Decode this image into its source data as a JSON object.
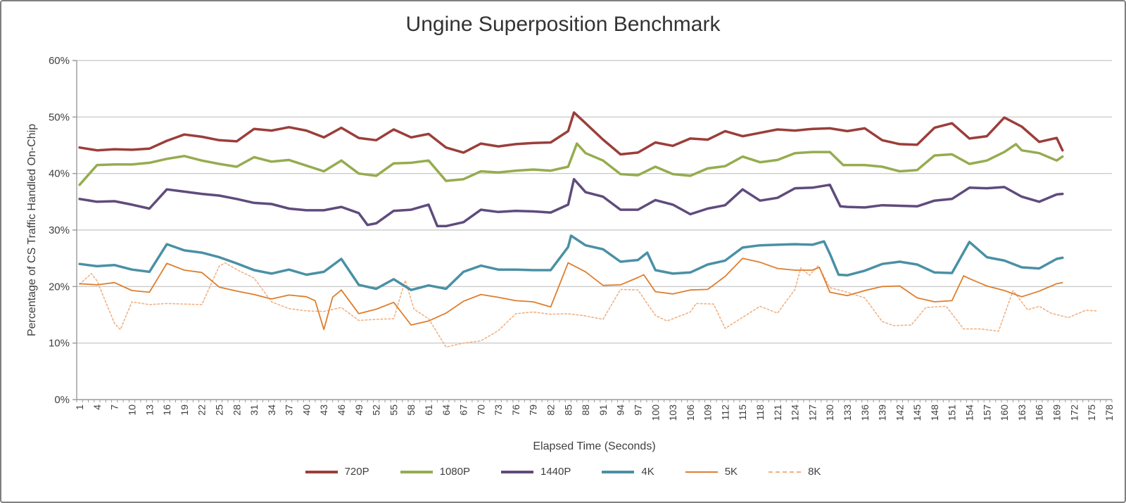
{
  "chart_data": {
    "type": "line",
    "title": "Ungine Superposition Benchmark",
    "xlabel": "Elapsed Time (Seconds)",
    "ylabel": "Percentage of CS Traffic Handled On-Chip",
    "grid": "horizontal",
    "legend_position": "bottom",
    "colors": {
      "gridline": "#c3c3c3",
      "axis": "#9a9a9a",
      "tick_text": "#3f3f3f",
      "title_text": "#333333"
    },
    "x_axis": {
      "min": 1,
      "max": 178,
      "label_step": 3,
      "minor_tick_step": 1
    },
    "y_axis": {
      "min": 0,
      "max": 60,
      "step": 10,
      "format": "percent"
    },
    "x_tick_labels": [
      1,
      4,
      7,
      10,
      13,
      16,
      19,
      22,
      25,
      28,
      31,
      34,
      37,
      40,
      43,
      46,
      49,
      52,
      55,
      58,
      61,
      64,
      67,
      70,
      73,
      76,
      79,
      82,
      85,
      88,
      91,
      94,
      97,
      100,
      103,
      106,
      109,
      112,
      115,
      118,
      121,
      124,
      127,
      130,
      133,
      136,
      139,
      142,
      145,
      148,
      151,
      154,
      157,
      160,
      163,
      166,
      169,
      172,
      175,
      178
    ],
    "y_tick_labels": [
      "0%",
      "10%",
      "20%",
      "30%",
      "40%",
      "50%",
      "60%"
    ],
    "series": [
      {
        "name": "720P",
        "color": "#9b3e3a",
        "width": 3.5,
        "dash": null,
        "legend_weight": 4,
        "x": [
          1,
          4,
          7,
          10,
          13,
          16,
          19,
          22,
          25,
          28,
          31,
          34,
          37,
          40,
          43,
          46,
          49,
          52,
          55,
          58,
          61,
          64,
          67,
          70,
          73,
          76,
          79,
          82,
          85,
          86,
          88,
          91,
          94,
          97,
          100,
          103,
          106,
          109,
          112,
          115,
          118,
          121,
          124,
          127,
          130,
          133,
          136,
          139,
          142,
          145,
          148,
          151,
          154,
          157,
          160,
          163,
          166,
          169,
          170
        ],
        "y": [
          44.6,
          44.1,
          44.3,
          44.2,
          44.4,
          45.8,
          46.9,
          46.5,
          45.9,
          45.7,
          47.9,
          47.6,
          48.2,
          47.6,
          46.4,
          48.1,
          46.3,
          45.9,
          47.8,
          46.4,
          47.0,
          44.6,
          43.7,
          45.3,
          44.8,
          45.2,
          45.4,
          45.5,
          47.5,
          50.8,
          48.9,
          46.0,
          43.4,
          43.7,
          45.5,
          44.9,
          46.2,
          46.0,
          47.5,
          46.6,
          47.2,
          47.8,
          47.6,
          47.9,
          48.0,
          47.5,
          48.0,
          45.9,
          45.2,
          45.1,
          48.1,
          48.9,
          46.2,
          46.6,
          49.9,
          48.3,
          45.6,
          46.3,
          44.1
        ]
      },
      {
        "name": "1080P",
        "color": "#95ac4f",
        "width": 3.5,
        "dash": null,
        "legend_weight": 4,
        "x": [
          1,
          4,
          7,
          10,
          13,
          16,
          19,
          22,
          25,
          28,
          31,
          34,
          37,
          40,
          43,
          46,
          49,
          52,
          55,
          58,
          61,
          64,
          67,
          70,
          73,
          76,
          79,
          82,
          85,
          86.5,
          88,
          91,
          94,
          97,
          100,
          103,
          106,
          109,
          112,
          115,
          118,
          121,
          124,
          127,
          130,
          132.3,
          133,
          136,
          139,
          142,
          145,
          148,
          151,
          154,
          157,
          160,
          162,
          163,
          166,
          169,
          170
        ],
        "y": [
          38.0,
          41.5,
          41.6,
          41.6,
          41.9,
          42.6,
          43.1,
          42.3,
          41.7,
          41.2,
          42.9,
          42.1,
          42.4,
          41.4,
          40.4,
          42.3,
          40.0,
          39.6,
          41.8,
          41.9,
          42.3,
          38.7,
          39.0,
          40.4,
          40.2,
          40.5,
          40.7,
          40.5,
          41.2,
          45.3,
          43.6,
          42.3,
          39.9,
          39.7,
          41.2,
          39.9,
          39.6,
          40.9,
          41.3,
          43.0,
          42.0,
          42.4,
          43.6,
          43.8,
          43.8,
          41.5,
          41.5,
          41.5,
          41.2,
          40.4,
          40.6,
          43.2,
          43.4,
          41.7,
          42.3,
          43.8,
          45.2,
          44.1,
          43.6,
          42.3,
          43.0
        ]
      },
      {
        "name": "1440P",
        "color": "#5f4b7c",
        "width": 3.5,
        "dash": null,
        "legend_weight": 4,
        "x": [
          1,
          4,
          7,
          10,
          13,
          16,
          19,
          22,
          25,
          28,
          31,
          34,
          37,
          40,
          43,
          46,
          49,
          50.5,
          52,
          55,
          58,
          61,
          62.5,
          64,
          67,
          70,
          73,
          76,
          79,
          82,
          85,
          86,
          88,
          91,
          94,
          97,
          100,
          103,
          106,
          109,
          112,
          115,
          118,
          121,
          124,
          127,
          130,
          131.8,
          133,
          136,
          139,
          142,
          145,
          148,
          151,
          154,
          157,
          160,
          163,
          166,
          169,
          170
        ],
        "y": [
          35.5,
          35.0,
          35.1,
          34.5,
          33.8,
          37.2,
          36.8,
          36.4,
          36.1,
          35.5,
          34.8,
          34.6,
          33.8,
          33.5,
          33.5,
          34.1,
          33.0,
          30.9,
          31.2,
          33.4,
          33.6,
          34.5,
          30.7,
          30.7,
          31.4,
          33.6,
          33.2,
          33.4,
          33.3,
          33.1,
          34.5,
          39.0,
          36.7,
          35.9,
          33.6,
          33.6,
          35.3,
          34.5,
          32.8,
          33.8,
          34.4,
          37.2,
          35.2,
          35.7,
          37.4,
          37.5,
          38.0,
          34.2,
          34.1,
          34.0,
          34.4,
          34.3,
          34.2,
          35.2,
          35.5,
          37.5,
          37.4,
          37.6,
          35.9,
          35.0,
          36.3,
          36.4
        ]
      },
      {
        "name": "4K",
        "color": "#4a90a4",
        "width": 3.5,
        "dash": null,
        "legend_weight": 4,
        "x": [
          1,
          4,
          7,
          10,
          13,
          16,
          19,
          22,
          25,
          28,
          31,
          34,
          37,
          40,
          43,
          46,
          49,
          52,
          55,
          58,
          61,
          64,
          67,
          70,
          73,
          76,
          79,
          82,
          85,
          85.5,
          88,
          91,
          94,
          97,
          98.6,
          100,
          103,
          106,
          109,
          112,
          115,
          118,
          121,
          124,
          127,
          129,
          130,
          131.5,
          133,
          136,
          139,
          142,
          145,
          148,
          151,
          154,
          157,
          160,
          163,
          166,
          169,
          170
        ],
        "y": [
          24.0,
          23.6,
          23.8,
          23.0,
          22.6,
          27.5,
          26.4,
          26.0,
          25.2,
          24.1,
          22.9,
          22.3,
          23.0,
          22.1,
          22.6,
          24.9,
          20.3,
          19.6,
          21.3,
          19.4,
          20.2,
          19.6,
          22.6,
          23.7,
          23.0,
          23.0,
          22.9,
          22.9,
          27.0,
          29.0,
          27.3,
          26.6,
          24.4,
          24.7,
          26.0,
          22.9,
          22.3,
          22.5,
          23.9,
          24.6,
          26.9,
          27.3,
          27.4,
          27.5,
          27.4,
          28.0,
          25.8,
          22.1,
          22.0,
          22.8,
          24.0,
          24.4,
          23.9,
          22.5,
          22.4,
          27.9,
          25.2,
          24.6,
          23.4,
          23.2,
          24.9,
          25.1
        ]
      },
      {
        "name": "5K",
        "color": "#de7e2d",
        "width": 1.8,
        "dash": null,
        "legend_weight": 2,
        "x": [
          1,
          4,
          7,
          10,
          13,
          16,
          19,
          22,
          25,
          28,
          31,
          34,
          37,
          40,
          41.5,
          43,
          44.5,
          46,
          49,
          52,
          55,
          58,
          61,
          64,
          67,
          70,
          73,
          76,
          79,
          82,
          85,
          88,
          91,
          94,
          97,
          98,
          100,
          103,
          106,
          109,
          112,
          115,
          118,
          121,
          124,
          127,
          128.2,
          130,
          133,
          136,
          139,
          142,
          145,
          148,
          151,
          153,
          154,
          157,
          160,
          163,
          166,
          169,
          170
        ],
        "y": [
          20.5,
          20.3,
          20.7,
          19.3,
          19.0,
          24.1,
          22.9,
          22.5,
          19.9,
          19.2,
          18.6,
          17.8,
          18.5,
          18.2,
          17.5,
          12.4,
          18.1,
          19.4,
          15.2,
          16.0,
          17.2,
          13.2,
          13.9,
          15.3,
          17.4,
          18.6,
          18.1,
          17.5,
          17.3,
          16.4,
          24.2,
          22.6,
          20.2,
          20.3,
          21.6,
          22.1,
          19.1,
          18.7,
          19.4,
          19.5,
          21.8,
          25.0,
          24.3,
          23.2,
          22.9,
          22.9,
          23.4,
          19.0,
          18.4,
          19.3,
          20.0,
          20.1,
          18.0,
          17.3,
          17.5,
          21.9,
          21.4,
          20.1,
          19.3,
          18.2,
          19.2,
          20.5,
          20.7
        ]
      },
      {
        "name": "8K",
        "color": "#f0b183",
        "width": 1.6,
        "dash": "2.5,3",
        "legend_weight": 2,
        "x": [
          1,
          3,
          4,
          7,
          8,
          10,
          13,
          16,
          19,
          22,
          25,
          26,
          28,
          31,
          34,
          37,
          40,
          43,
          46,
          49,
          52,
          55,
          57,
          58.5,
          61,
          64,
          67,
          70,
          73,
          76,
          79,
          82,
          85,
          88,
          91,
          94,
          97,
          100,
          102,
          106,
          107,
          110,
          112,
          114,
          118,
          121,
          124,
          125,
          126.5,
          128,
          130,
          133,
          136,
          139,
          141,
          144,
          146.5,
          150,
          153,
          156,
          159,
          161.5,
          164,
          166,
          168,
          171,
          174,
          176
        ],
        "y": [
          20.4,
          22.3,
          21.0,
          13.5,
          12.4,
          17.3,
          16.8,
          17.0,
          16.9,
          16.8,
          23.6,
          24.2,
          23.0,
          21.5,
          17.3,
          16.1,
          15.7,
          15.6,
          16.3,
          14.0,
          14.2,
          14.3,
          21.1,
          16.0,
          14.3,
          9.3,
          10.0,
          10.4,
          12.2,
          15.2,
          15.5,
          15.1,
          15.2,
          14.8,
          14.2,
          19.5,
          19.4,
          14.9,
          13.9,
          15.5,
          17.0,
          16.9,
          12.6,
          13.9,
          16.5,
          15.3,
          19.5,
          23.3,
          22.0,
          23.7,
          19.8,
          19.0,
          18.0,
          13.8,
          13.1,
          13.2,
          16.3,
          16.5,
          12.5,
          12.5,
          12.1,
          19.3,
          15.9,
          16.5,
          15.3,
          14.5,
          15.8,
          15.7
        ]
      }
    ]
  }
}
